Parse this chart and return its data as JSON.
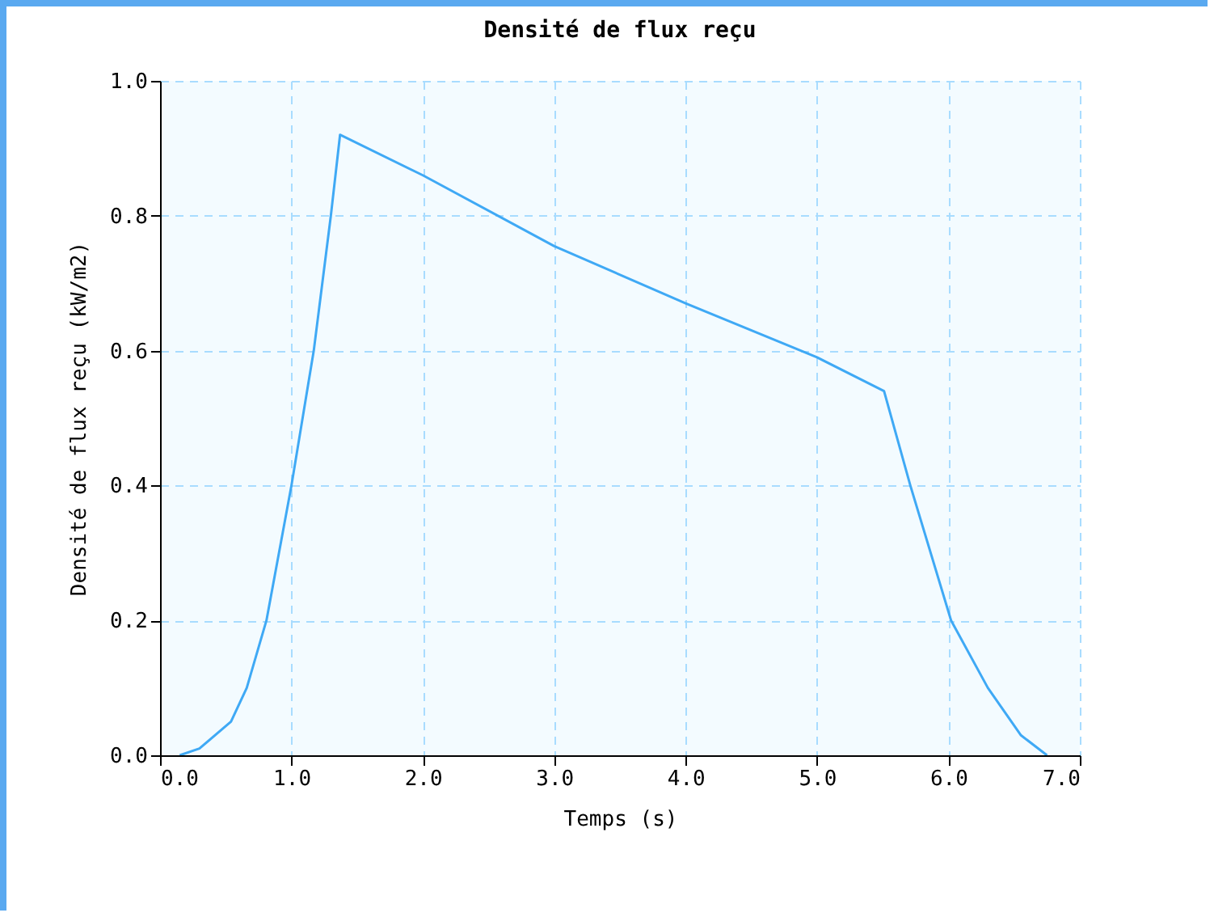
{
  "chart_data": {
    "type": "line",
    "title": "Densité de flux reçu",
    "xlabel": "Temps (s)",
    "ylabel": "Densité de flux reçu (kW/m2)",
    "series": [
      {
        "color": "#3fa9f5",
        "x": [
          0.15,
          0.3,
          0.54,
          0.66,
          0.81,
          1.0,
          1.17,
          1.3,
          1.37,
          2.0,
          3.0,
          4.0,
          5.0,
          5.51,
          5.71,
          6.02,
          6.3,
          6.55,
          6.75
        ],
        "values": [
          0,
          0.01,
          0.05,
          0.1,
          0.2,
          0.4,
          0.6,
          0.8,
          0.92,
          0.86,
          0.755,
          0.67,
          0.59,
          0.54,
          0.4,
          0.2,
          0.1,
          0.03,
          0
        ]
      }
    ],
    "xlim": [
      0,
      7
    ],
    "xticks": [
      {
        "value": 0,
        "label": "0.0"
      },
      {
        "value": 1,
        "label": "1.0"
      },
      {
        "value": 2,
        "label": "2.0"
      },
      {
        "value": 3,
        "label": "3.0"
      },
      {
        "value": 4,
        "label": "4.0"
      },
      {
        "value": 5,
        "label": "5.0"
      },
      {
        "value": 6,
        "label": "6.0"
      },
      {
        "value": 7,
        "label": "7.0"
      }
    ],
    "ylim": [
      0,
      1
    ],
    "yticks": [
      {
        "value": 0,
        "label": "0.0"
      },
      {
        "value": 0.2,
        "label": "0.2"
      },
      {
        "value": 0.4,
        "label": "0.4"
      },
      {
        "value": 0.6,
        "label": "0.6"
      },
      {
        "value": 0.8,
        "label": "0.8"
      },
      {
        "value": 1,
        "label": "1.0"
      }
    ],
    "grid": true,
    "marker": "none",
    "line_style": "solid"
  }
}
